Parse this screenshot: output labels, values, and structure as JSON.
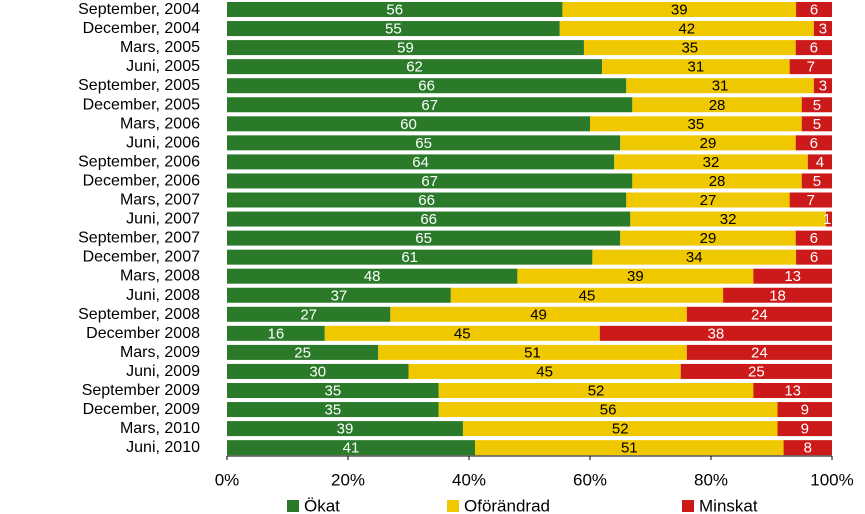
{
  "chart_data": {
    "type": "bar",
    "orientation": "horizontal",
    "stacked": "percent",
    "categories": [
      "September, 2004",
      "December, 2004",
      "Mars, 2005",
      "Juni, 2005",
      "September, 2005",
      "December, 2005",
      "Mars, 2006",
      "Juni, 2006",
      "September, 2006",
      "December, 2006",
      "Mars, 2007",
      "Juni, 2007",
      "September, 2007",
      "December, 2007",
      "Mars, 2008",
      "Juni, 2008",
      "September, 2008",
      "December 2008",
      "Mars, 2009",
      "Juni, 2009",
      "September 2009",
      "December, 2009",
      "Mars, 2010",
      "Juni, 2010"
    ],
    "series": [
      {
        "name": "Ökat",
        "color": "#2a7a2a",
        "label_color": "#ffffff",
        "values": [
          56,
          55,
          59,
          62,
          66,
          67,
          60,
          65,
          64,
          67,
          66,
          66,
          65,
          61,
          48,
          37,
          27,
          16,
          25,
          30,
          35,
          35,
          39,
          41
        ]
      },
      {
        "name": "Oförändrad",
        "color": "#f0c800",
        "label_color": "#000000",
        "values": [
          39,
          42,
          35,
          31,
          31,
          28,
          35,
          29,
          32,
          28,
          27,
          32,
          29,
          34,
          39,
          45,
          49,
          45,
          51,
          45,
          52,
          56,
          52,
          51
        ]
      },
      {
        "name": "Minskat",
        "color": "#cc1a1a",
        "label_color": "#ffffff",
        "values": [
          6,
          3,
          6,
          7,
          3,
          5,
          5,
          6,
          4,
          5,
          7,
          1,
          6,
          6,
          13,
          18,
          24,
          38,
          24,
          25,
          13,
          9,
          9,
          8
        ]
      }
    ],
    "x_ticks": [
      "0%",
      "20%",
      "40%",
      "60%",
      "80%",
      "100%"
    ],
    "xlim": [
      0,
      100
    ],
    "grid": false,
    "legend_position": "bottom"
  }
}
